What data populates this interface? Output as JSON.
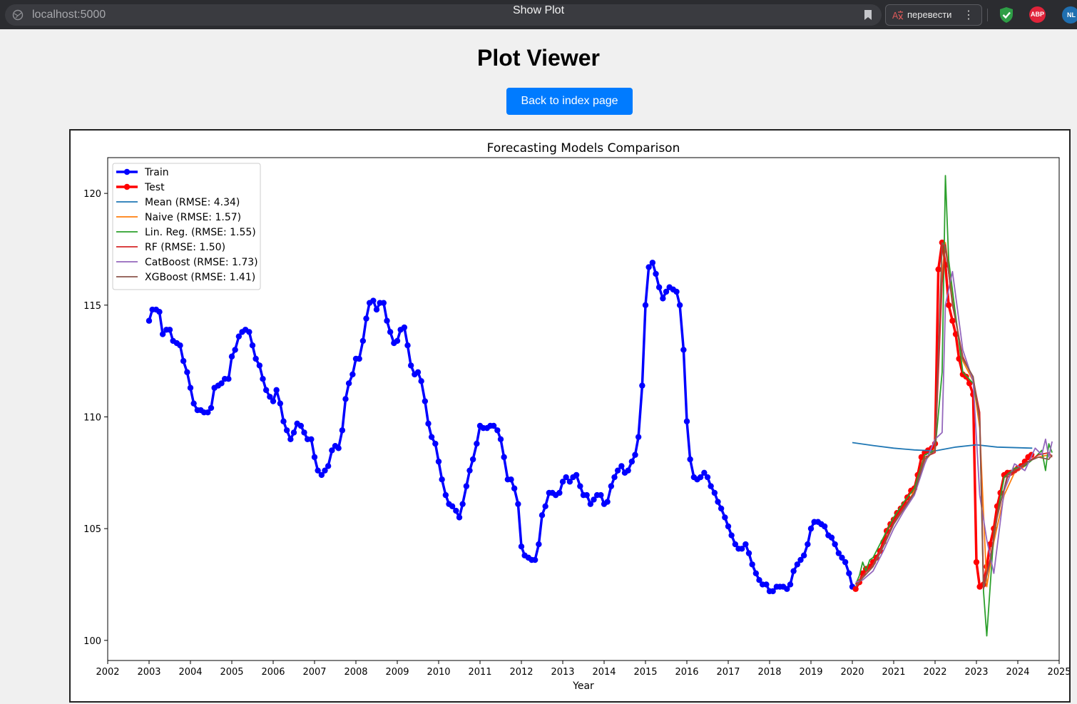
{
  "browser": {
    "url": "localhost:5000",
    "tab_title": "Show Plot",
    "translate_label": "перевести",
    "extensions": [
      {
        "name": "shield-extension",
        "color": "#2e9e46"
      },
      {
        "name": "adblock-plus",
        "label": "ABP",
        "color": "#e0243a"
      },
      {
        "name": "nl-extension",
        "label": "NL",
        "color": "#1f6fb0"
      }
    ]
  },
  "page": {
    "title": "Plot Viewer",
    "back_button": "Back to index page"
  },
  "chart_data": {
    "type": "line",
    "title": "Forecasting Models Comparison",
    "xlabel": "Year",
    "ylabel": "",
    "xlim": [
      2002,
      2025
    ],
    "ylim": [
      99.1,
      121.6
    ],
    "x_ticks": [
      "2002",
      "2003",
      "2004",
      "2005",
      "2006",
      "2007",
      "2008",
      "2009",
      "2010",
      "2011",
      "2012",
      "2013",
      "2014",
      "2015",
      "2016",
      "2017",
      "2018",
      "2019",
      "2020",
      "2021",
      "2022",
      "2023",
      "2024",
      "2025"
    ],
    "y_ticks": [
      "100",
      "105",
      "110",
      "115",
      "120"
    ],
    "legend_position": "top-left",
    "grid": false,
    "train": {
      "name": "Train",
      "color": "#0000ff",
      "x": [
        2003.0,
        2003.08,
        2003.17,
        2003.25,
        2003.33,
        2003.42,
        2003.5,
        2003.58,
        2003.67,
        2003.75,
        2003.83,
        2003.92,
        2004.0,
        2004.08,
        2004.17,
        2004.25,
        2004.33,
        2004.42,
        2004.5,
        2004.58,
        2004.67,
        2004.75,
        2004.83,
        2004.92,
        2005.0,
        2005.08,
        2005.17,
        2005.25,
        2005.33,
        2005.42,
        2005.5,
        2005.58,
        2005.67,
        2005.75,
        2005.83,
        2005.92,
        2006.0,
        2006.08,
        2006.17,
        2006.25,
        2006.33,
        2006.42,
        2006.5,
        2006.58,
        2006.67,
        2006.75,
        2006.83,
        2006.92,
        2007.0,
        2007.08,
        2007.17,
        2007.25,
        2007.33,
        2007.42,
        2007.5,
        2007.58,
        2007.67,
        2007.75,
        2007.83,
        2007.92,
        2008.0,
        2008.08,
        2008.17,
        2008.25,
        2008.33,
        2008.42,
        2008.5,
        2008.58,
        2008.67,
        2008.75,
        2008.83,
        2008.92,
        2009.0,
        2009.08,
        2009.17,
        2009.25,
        2009.33,
        2009.42,
        2009.5,
        2009.58,
        2009.67,
        2009.75,
        2009.83,
        2009.92,
        2010.0,
        2010.08,
        2010.17,
        2010.25,
        2010.33,
        2010.42,
        2010.5,
        2010.58,
        2010.67,
        2010.75,
        2010.83,
        2010.92,
        2011.0,
        2011.08,
        2011.17,
        2011.25,
        2011.33,
        2011.42,
        2011.5,
        2011.58,
        2011.67,
        2011.75,
        2011.83,
        2011.92,
        2012.0,
        2012.08,
        2012.17,
        2012.25,
        2012.33,
        2012.42,
        2012.5,
        2012.58,
        2012.67,
        2012.75,
        2012.83,
        2012.92,
        2013.0,
        2013.08,
        2013.17,
        2013.25,
        2013.33,
        2013.42,
        2013.5,
        2013.58,
        2013.67,
        2013.75,
        2013.83,
        2013.92,
        2014.0,
        2014.08,
        2014.17,
        2014.25,
        2014.33,
        2014.42,
        2014.5,
        2014.58,
        2014.67,
        2014.75,
        2014.83,
        2014.92,
        2015.0,
        2015.08,
        2015.17,
        2015.25,
        2015.33,
        2015.42,
        2015.5,
        2015.58,
        2015.67,
        2015.75,
        2015.83,
        2015.92,
        2016.0,
        2016.08,
        2016.17,
        2016.25,
        2016.33,
        2016.42,
        2016.5,
        2016.58,
        2016.67,
        2016.75,
        2016.83,
        2016.92,
        2017.0,
        2017.08,
        2017.17,
        2017.25,
        2017.33,
        2017.42,
        2017.5,
        2017.58,
        2017.67,
        2017.75,
        2017.83,
        2017.92,
        2018.0,
        2018.08,
        2018.17,
        2018.25,
        2018.33,
        2018.42,
        2018.5,
        2018.58,
        2018.67,
        2018.75,
        2018.83,
        2018.92,
        2019.0,
        2019.08,
        2019.17,
        2019.25,
        2019.33,
        2019.42,
        2019.5,
        2019.58,
        2019.67,
        2019.75,
        2019.83,
        2019.92,
        2020.0
      ],
      "y": [
        114.3,
        114.8,
        114.8,
        114.7,
        113.7,
        113.9,
        113.9,
        113.4,
        113.3,
        113.2,
        112.5,
        112.0,
        111.3,
        110.6,
        110.3,
        110.3,
        110.2,
        110.2,
        110.4,
        111.3,
        111.4,
        111.5,
        111.7,
        111.7,
        112.7,
        113.0,
        113.6,
        113.8,
        113.9,
        113.8,
        113.2,
        112.6,
        112.3,
        111.7,
        111.2,
        110.9,
        110.7,
        111.2,
        110.6,
        109.8,
        109.4,
        109.0,
        109.3,
        109.7,
        109.6,
        109.3,
        109.0,
        109.0,
        108.2,
        107.6,
        107.4,
        107.6,
        107.8,
        108.5,
        108.7,
        108.6,
        109.4,
        110.8,
        111.5,
        111.9,
        112.6,
        112.6,
        113.4,
        114.4,
        115.1,
        115.2,
        114.8,
        115.1,
        115.1,
        114.3,
        113.8,
        113.3,
        113.4,
        113.9,
        114.0,
        113.2,
        112.3,
        111.9,
        112.0,
        111.6,
        110.7,
        109.7,
        109.1,
        108.8,
        108.0,
        107.2,
        106.5,
        106.1,
        106.0,
        105.8,
        105.5,
        106.1,
        106.9,
        107.6,
        108.1,
        108.8,
        109.6,
        109.5,
        109.5,
        109.6,
        109.6,
        109.4,
        109.0,
        108.2,
        107.2,
        107.2,
        106.8,
        106.1,
        104.2,
        103.8,
        103.7,
        103.6,
        103.6,
        104.3,
        105.6,
        106.0,
        106.6,
        106.6,
        106.5,
        106.6,
        107.1,
        107.3,
        107.1,
        107.3,
        107.4,
        106.9,
        106.5,
        106.5,
        106.1,
        106.3,
        106.5,
        106.5,
        106.1,
        106.2,
        106.9,
        107.3,
        107.6,
        107.8,
        107.5,
        107.6,
        108.0,
        108.3,
        109.1,
        111.4,
        115.0,
        116.7,
        116.9,
        116.4,
        115.8,
        115.3,
        115.6,
        115.8,
        115.7,
        115.6,
        115.0,
        113.0,
        109.8,
        108.1,
        107.3,
        107.2,
        107.3,
        107.5,
        107.3,
        106.9,
        106.6,
        106.2,
        105.9,
        105.5,
        105.1,
        104.7,
        104.3,
        104.1,
        104.1,
        104.3,
        103.9,
        103.4,
        103.0,
        102.7,
        102.5,
        102.5,
        102.2,
        102.2,
        102.4,
        102.4,
        102.4,
        102.3,
        102.5,
        103.1,
        103.4,
        103.6,
        103.8,
        104.3,
        105.0,
        105.3,
        105.3,
        105.2,
        105.1,
        104.7,
        104.6,
        104.3,
        103.9,
        103.7,
        103.5,
        103.0,
        102.4
      ]
    },
    "test": {
      "name": "Test",
      "color": "#ff0000",
      "x": [
        2020.08,
        2020.17,
        2020.25,
        2020.33,
        2020.42,
        2020.5,
        2020.58,
        2020.67,
        2020.75,
        2020.83,
        2020.92,
        2021.0,
        2021.08,
        2021.17,
        2021.25,
        2021.33,
        2021.42,
        2021.5,
        2021.58,
        2021.67,
        2021.75,
        2021.83,
        2021.92,
        2022.0,
        2022.08,
        2022.17,
        2022.25,
        2022.33,
        2022.42,
        2022.5,
        2022.58,
        2022.67,
        2022.75,
        2022.83,
        2022.92,
        2023.0,
        2023.08,
        2023.17,
        2023.25,
        2023.33,
        2023.42,
        2023.5,
        2023.58,
        2023.67,
        2023.75,
        2023.83,
        2023.92,
        2024.0,
        2024.08,
        2024.17,
        2024.25,
        2024.33
      ],
      "y": [
        102.3,
        102.6,
        103.0,
        103.2,
        103.3,
        103.5,
        103.7,
        104.0,
        104.4,
        104.9,
        105.2,
        105.4,
        105.7,
        105.9,
        106.1,
        106.4,
        106.7,
        106.8,
        107.4,
        108.2,
        108.4,
        108.5,
        108.6,
        108.8,
        116.6,
        117.8,
        116.8,
        115.0,
        114.3,
        113.7,
        112.6,
        111.9,
        111.8,
        111.5,
        111.0,
        103.5,
        102.4,
        102.5,
        103.3,
        104.3,
        105.0,
        106.0,
        106.6,
        107.4,
        107.5,
        107.5,
        107.6,
        107.7,
        107.8,
        108.0,
        108.2,
        108.3
      ]
    },
    "forecasts": [
      {
        "name": "Mean (RMSE: 4.34)",
        "color": "#1f77b4",
        "x": [
          2020.0,
          2020.5,
          2021.0,
          2021.5,
          2022.0,
          2022.5,
          2023.0,
          2023.5,
          2024.0,
          2024.35
        ],
        "y": [
          108.85,
          108.72,
          108.6,
          108.52,
          108.48,
          108.65,
          108.75,
          108.65,
          108.62,
          108.6
        ]
      },
      {
        "name": "Naive (RMSE: 1.57)",
        "color": "#ff7f0e",
        "x": [
          2020.08,
          2020.25,
          2020.5,
          2020.75,
          2021.0,
          2021.25,
          2021.5,
          2021.75,
          2022.0,
          2022.17,
          2022.25,
          2022.42,
          2022.67,
          2022.92,
          2023.08,
          2023.25,
          2023.42,
          2023.67,
          2023.92,
          2024.17,
          2024.33,
          2024.5,
          2024.75
        ],
        "y": [
          102.4,
          102.8,
          103.3,
          104.2,
          105.2,
          105.9,
          106.7,
          108.0,
          108.6,
          116.5,
          117.8,
          115.3,
          112.5,
          111.6,
          109.5,
          102.4,
          104.4,
          106.5,
          107.5,
          107.8,
          108.1,
          108.2,
          108.3
        ]
      },
      {
        "name": "Lin. Reg. (RMSE: 1.55)",
        "color": "#2ca02c",
        "x": [
          2020.08,
          2020.17,
          2020.25,
          2020.33,
          2020.42,
          2020.5,
          2020.75,
          2021.0,
          2021.25,
          2021.5,
          2021.75,
          2022.0,
          2022.17,
          2022.25,
          2022.33,
          2022.5,
          2022.67,
          2022.92,
          2023.08,
          2023.17,
          2023.25,
          2023.42,
          2023.67,
          2023.92,
          2024.17,
          2024.42,
          2024.58,
          2024.67,
          2024.75,
          2024.83
        ],
        "y": [
          102.5,
          102.9,
          103.5,
          103.1,
          103.6,
          103.7,
          104.6,
          105.5,
          106.2,
          106.8,
          108.3,
          108.5,
          112.0,
          120.8,
          117.0,
          114.5,
          112.0,
          111.5,
          110.0,
          102.2,
          100.2,
          104.8,
          107.3,
          107.7,
          107.8,
          108.2,
          108.5,
          107.6,
          108.8,
          108.4
        ]
      },
      {
        "name": "RF (RMSE: 1.50)",
        "color": "#d62728",
        "x": [
          2020.08,
          2020.25,
          2020.5,
          2020.75,
          2021.0,
          2021.25,
          2021.5,
          2021.75,
          2022.0,
          2022.17,
          2022.25,
          2022.42,
          2022.67,
          2022.92,
          2023.08,
          2023.17,
          2023.33,
          2023.5,
          2023.75,
          2024.0,
          2024.25,
          2024.5,
          2024.75,
          2024.83
        ],
        "y": [
          102.5,
          102.9,
          103.4,
          104.3,
          105.3,
          106.0,
          106.6,
          108.2,
          108.4,
          116.0,
          117.7,
          115.0,
          112.7,
          111.7,
          110.2,
          102.6,
          103.6,
          105.6,
          107.3,
          107.6,
          108.0,
          108.3,
          108.4,
          108.2
        ]
      },
      {
        "name": "CatBoost (RMSE: 1.73)",
        "color": "#9467bd",
        "x": [
          2020.08,
          2020.25,
          2020.5,
          2020.75,
          2021.0,
          2021.25,
          2021.5,
          2021.75,
          2022.0,
          2022.17,
          2022.25,
          2022.42,
          2022.67,
          2022.92,
          2023.08,
          2023.25,
          2023.42,
          2023.67,
          2023.92,
          2024.17,
          2024.42,
          2024.58,
          2024.67,
          2024.75,
          2024.83
        ],
        "y": [
          102.6,
          102.7,
          103.1,
          104.0,
          105.0,
          105.8,
          106.5,
          107.9,
          109.0,
          109.3,
          115.0,
          116.5,
          113.0,
          111.6,
          106.5,
          104.5,
          103.0,
          106.7,
          107.9,
          107.6,
          108.6,
          108.3,
          109.0,
          108.2,
          108.9
        ]
      },
      {
        "name": "XGBoost (RMSE: 1.41)",
        "color": "#8c564b",
        "x": [
          2020.08,
          2020.25,
          2020.5,
          2020.75,
          2021.0,
          2021.25,
          2021.5,
          2021.75,
          2022.0,
          2022.17,
          2022.25,
          2022.42,
          2022.67,
          2022.92,
          2023.08,
          2023.17,
          2023.33,
          2023.5,
          2023.75,
          2024.0,
          2024.25,
          2024.5,
          2024.75,
          2024.83
        ],
        "y": [
          102.4,
          102.8,
          103.3,
          104.2,
          105.2,
          105.9,
          106.6,
          108.1,
          108.5,
          117.8,
          117.6,
          115.1,
          112.6,
          111.8,
          109.8,
          102.3,
          103.5,
          105.5,
          107.4,
          107.7,
          108.0,
          108.2,
          108.1,
          108.3
        ]
      }
    ]
  }
}
